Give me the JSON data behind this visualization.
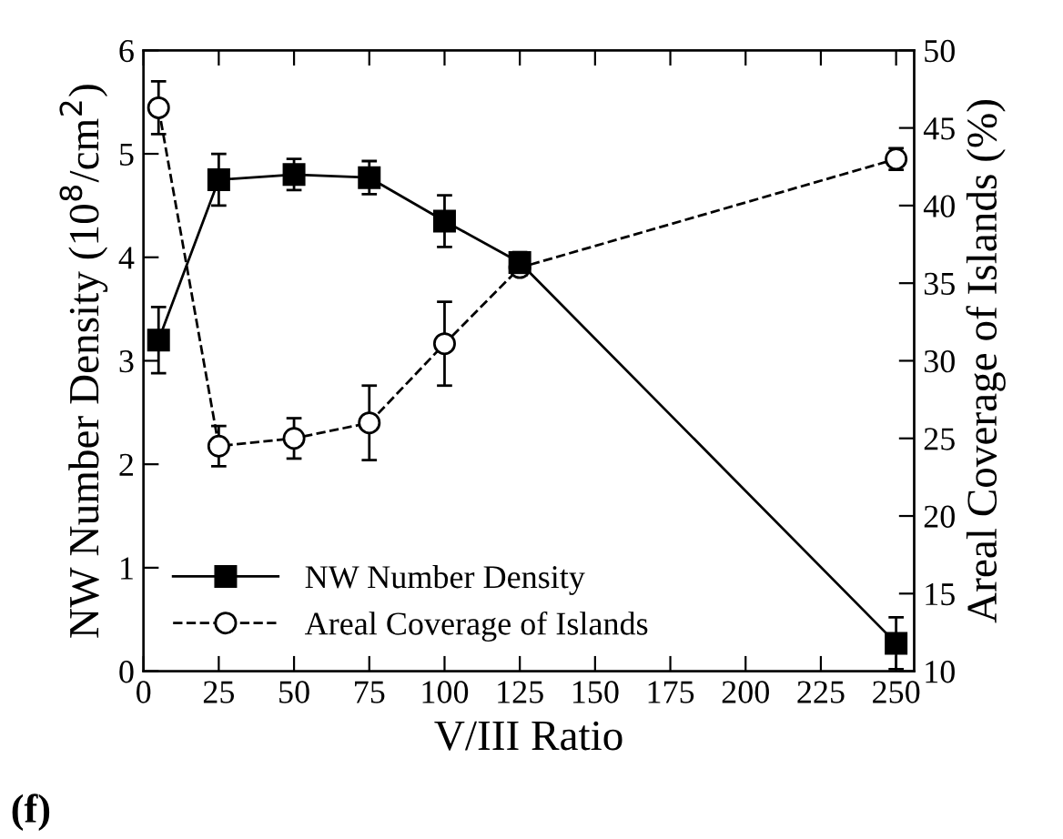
{
  "chart_data": {
    "type": "line",
    "xlabel": "V/III Ratio",
    "ylabel": "NW Number Density (10$^{8}$/cm$^{2}$)",
    "y2label": "Areal Coverage of Islands (%)",
    "annotations": [
      "(f)"
    ],
    "x": [
      5,
      25,
      50,
      75,
      100,
      125,
      250
    ],
    "series": [
      {
        "name": "NW Number Density",
        "color": "#000000",
        "marker": "square",
        "line_style": "solid",
        "values": [
          3.2,
          4.75,
          4.8,
          4.77,
          4.35,
          3.95,
          0.27
        ],
        "errors": [
          0.32,
          0.25,
          0.15,
          0.16,
          0.25,
          0.1,
          0.25
        ]
      },
      {
        "name": "Areal Coverage of Islands",
        "color": "#000000",
        "marker": "circle",
        "line_style": "dashed",
        "axis": "y2",
        "values": [
          46.3,
          24.5,
          25.0,
          26.0,
          31.1,
          36.0,
          43.0
        ],
        "errors": [
          1.7,
          1.3,
          1.3,
          2.4,
          2.7,
          0.5,
          0.7
        ]
      }
    ],
    "xlim": [
      0,
      256
    ],
    "xticks": [
      0,
      25,
      50,
      75,
      100,
      125,
      150,
      175,
      200,
      225,
      250
    ],
    "ylim": [
      0,
      6
    ],
    "yticks": [
      0,
      1,
      2,
      3,
      4,
      5,
      6
    ],
    "y2lim": [
      10,
      50
    ],
    "y2ticks": [
      10,
      15,
      20,
      25,
      30,
      35,
      40,
      45,
      50
    ],
    "legend": "bottom left",
    "grid": false
  }
}
